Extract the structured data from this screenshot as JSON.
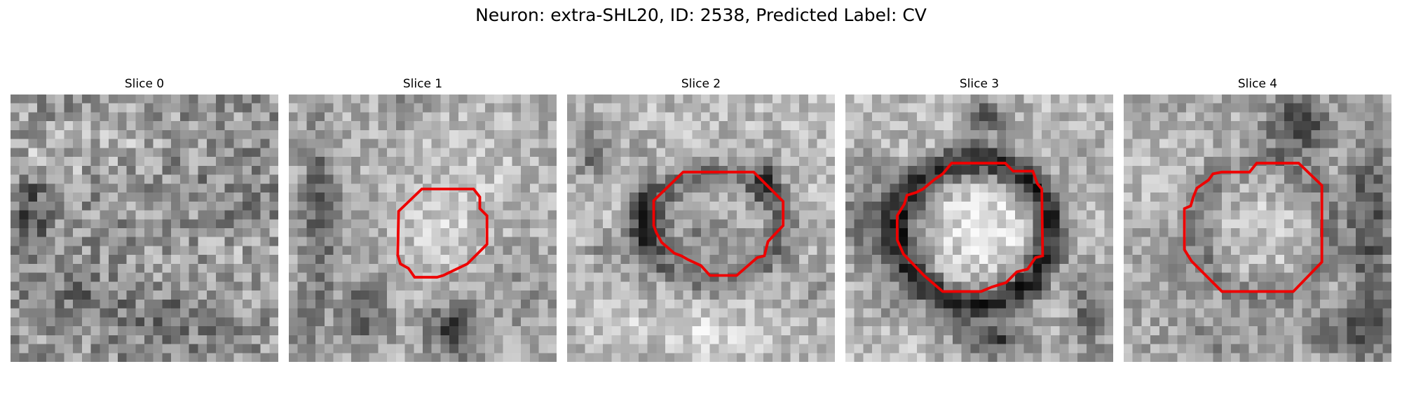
{
  "figure": {
    "title": "Neuron: extra-SHL20, ID: 2538, Predicted Label: CV"
  },
  "colors": {
    "contour": "#ee0000",
    "background": "#ffffff"
  },
  "panels": [
    {
      "title": "Slice 0",
      "has_contour": false
    },
    {
      "title": "Slice 1",
      "has_contour": true
    },
    {
      "title": "Slice 2",
      "has_contour": true
    },
    {
      "title": "Slice 3",
      "has_contour": true
    },
    {
      "title": "Slice 4",
      "has_contour": true
    }
  ]
}
